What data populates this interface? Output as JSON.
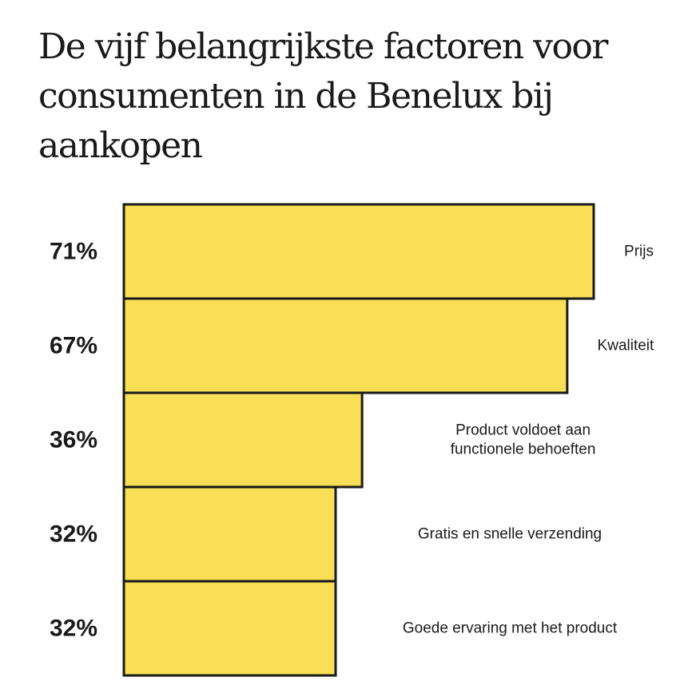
{
  "chart_data": {
    "type": "bar",
    "orientation": "horizontal",
    "title": "De vijf belangrijkste factoren voor consumenten in de Benelux bij aankopen",
    "categories": [
      [
        "Prijs"
      ],
      [
        "Kwaliteit"
      ],
      [
        "Product voldoet aan",
        "functionele behoeften"
      ],
      [
        "Gratis en snelle verzending"
      ],
      [
        "Goede ervaring met het product"
      ]
    ],
    "values": [
      71,
      67,
      36,
      32,
      32
    ],
    "value_labels": [
      "71%",
      "67%",
      "36%",
      "32%",
      "32%"
    ],
    "xlim": [
      0,
      71
    ],
    "xlabel": "",
    "ylabel": "",
    "bar_color": "#f8df55",
    "edge_color": "#1a1a1a"
  }
}
